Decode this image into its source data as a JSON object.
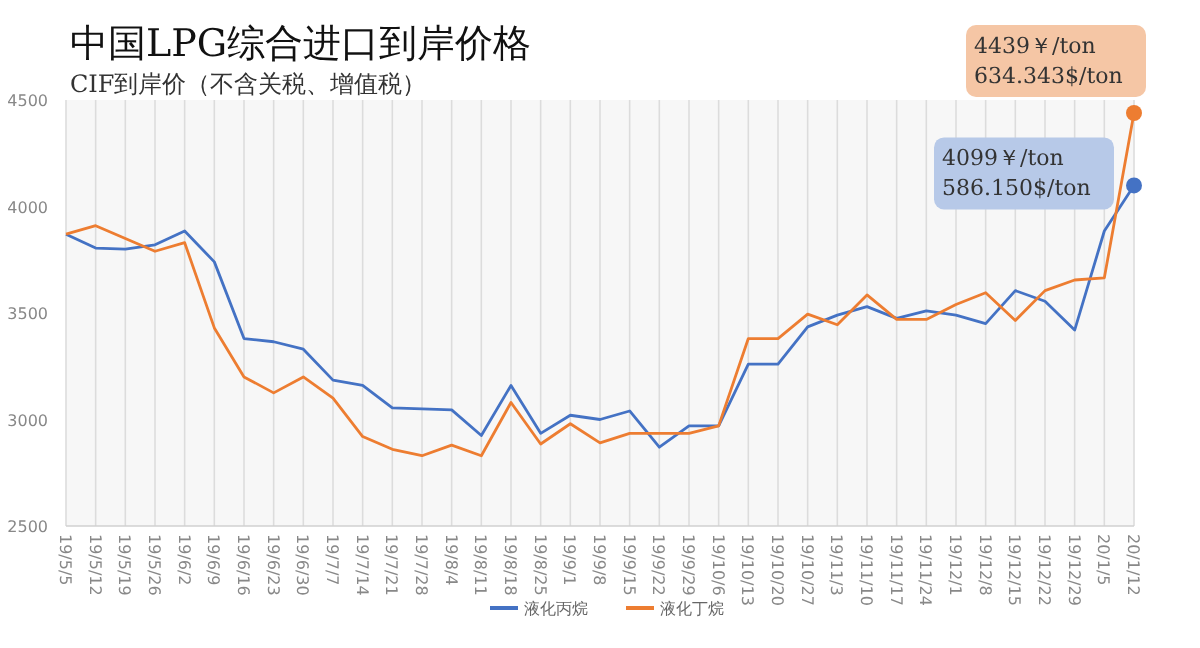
{
  "chart_data": {
    "type": "line",
    "title": "中国LPG综合进口到岸价格",
    "subtitle": "CIF到岸价（不含关税、增值税）",
    "categories": [
      "19/5/5",
      "19/5/12",
      "19/5/19",
      "19/5/26",
      "19/6/2",
      "19/6/9",
      "19/6/16",
      "19/6/23",
      "19/6/30",
      "19/7/7",
      "19/7/14",
      "19/7/21",
      "19/7/28",
      "19/8/4",
      "19/8/11",
      "19/8/18",
      "19/8/25",
      "19/9/1",
      "19/9/8",
      "19/9/15",
      "19/9/22",
      "19/9/29",
      "19/10/6",
      "19/10/13",
      "19/10/20",
      "19/10/27",
      "19/11/3",
      "19/11/10",
      "19/11/17",
      "19/11/24",
      "19/12/1",
      "19/12/8",
      "19/12/15",
      "19/12/22",
      "19/12/29",
      "20/1/5",
      "20/1/12"
    ],
    "series": [
      {
        "name": "液化丙烷",
        "color": "#4472c4",
        "values": [
          3870,
          3805,
          3800,
          3820,
          3885,
          3740,
          3380,
          3365,
          3330,
          3185,
          3160,
          3055,
          3050,
          3045,
          2925,
          3160,
          2935,
          3020,
          3000,
          3040,
          2870,
          2970,
          2970,
          3260,
          3260,
          3435,
          3490,
          3530,
          3475,
          3510,
          3490,
          3450,
          3605,
          3555,
          3420,
          3885,
          4099
        ]
      },
      {
        "name": "液化丁烷",
        "color": "#ed7d31",
        "values": [
          3870,
          3910,
          3850,
          3790,
          3830,
          3430,
          3200,
          3125,
          3200,
          3100,
          2920,
          2860,
          2830,
          2880,
          2830,
          3080,
          2885,
          2980,
          2890,
          2935,
          2935,
          2935,
          2970,
          3380,
          3380,
          3495,
          3445,
          3585,
          3470,
          3470,
          3540,
          3595,
          3465,
          3605,
          3655,
          3665,
          4439
        ]
      }
    ],
    "ylim": [
      2500,
      4500
    ],
    "yticks": [
      2500,
      3000,
      3500,
      4000,
      4500
    ],
    "grid": "x",
    "legend": "bottom",
    "marker": "none",
    "line_style": "solid",
    "annotations": [
      {
        "text": "4439￥/ton\n634.343$/ton",
        "x": "20/1/12",
        "y": 4439
      },
      {
        "text": "4099￥/ton\n586.150$/ton",
        "x": "20/1/12",
        "y": 4099
      }
    ]
  }
}
